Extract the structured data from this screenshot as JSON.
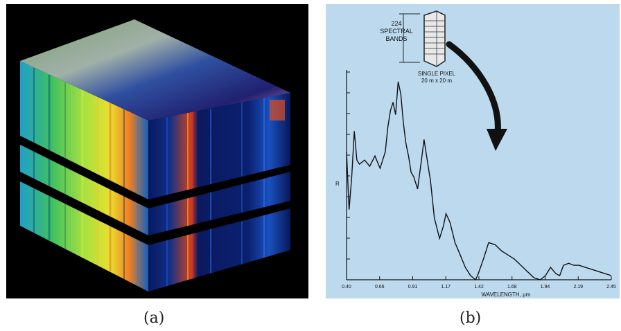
{
  "figure": {
    "caption_a": "(a)",
    "caption_b": "(b)"
  },
  "panel_b": {
    "bands_label_line1": "224",
    "bands_label_line2": "SPECTRAL",
    "bands_label_line3": "BANDS",
    "pixel_label_line1": "SINGLE PIXEL",
    "pixel_label_line2": "20 m x 20 m",
    "ylabel": "R",
    "xlabel": "WAVELENGTH, μm",
    "xticks": [
      "0.40",
      "0.66",
      "0.91",
      "1.17",
      "1.42",
      "1.68",
      "1.94",
      "2.19",
      "2.45"
    ]
  },
  "chart_data": {
    "type": "line",
    "title": "",
    "xlabel": "WAVELENGTH, μm",
    "ylabel": "R",
    "xlim": [
      0.4,
      2.45
    ],
    "ylim": [
      0,
      1
    ],
    "grid": false,
    "x_ticks": [
      "0.40",
      "0.66",
      "0.91",
      "1.17",
      "1.42",
      "1.68",
      "1.94",
      "2.19",
      "2.45"
    ],
    "series": [
      {
        "x": [
          0.4,
          0.42,
          0.44,
          0.46,
          0.48,
          0.5,
          0.54,
          0.58,
          0.62,
          0.66,
          0.7,
          0.72,
          0.74,
          0.76,
          0.78,
          0.8,
          0.82,
          0.84,
          0.86,
          0.88,
          0.9,
          0.92,
          0.95,
          0.98,
          1.0,
          1.02,
          1.05,
          1.08,
          1.12,
          1.15,
          1.17,
          1.2,
          1.24,
          1.28,
          1.32,
          1.36,
          1.4,
          1.42,
          1.46,
          1.5,
          1.55,
          1.6,
          1.65,
          1.7,
          1.75,
          1.8,
          1.85,
          1.9,
          1.94,
          1.98,
          2.02,
          2.05,
          2.08,
          2.12,
          2.16,
          2.2,
          2.25,
          2.3,
          2.35,
          2.4,
          2.45
        ],
        "y": [
          0.62,
          0.34,
          0.5,
          0.72,
          0.58,
          0.56,
          0.58,
          0.55,
          0.6,
          0.54,
          0.62,
          0.74,
          0.82,
          0.86,
          0.8,
          0.96,
          0.9,
          0.76,
          0.66,
          0.6,
          0.52,
          0.5,
          0.44,
          0.58,
          0.68,
          0.6,
          0.48,
          0.3,
          0.2,
          0.26,
          0.32,
          0.28,
          0.18,
          0.12,
          0.06,
          0.02,
          0.0,
          0.03,
          0.1,
          0.18,
          0.17,
          0.14,
          0.12,
          0.1,
          0.07,
          0.04,
          0.01,
          0.0,
          0.02,
          0.06,
          0.03,
          0.02,
          0.07,
          0.08,
          0.07,
          0.07,
          0.06,
          0.05,
          0.04,
          0.03,
          0.02
        ]
      }
    ]
  }
}
